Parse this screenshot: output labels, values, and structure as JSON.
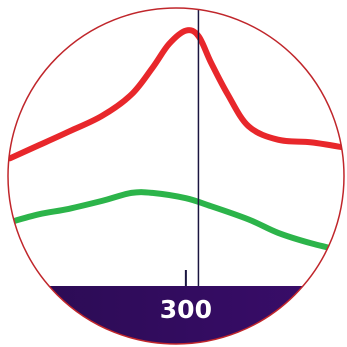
{
  "magnifier": {
    "border_color": "#c0262b",
    "background": "#ffffff",
    "axis_bar_color_start": "#2a0b52",
    "axis_bar_color_end": "#3a0d6b"
  },
  "chart_data": {
    "type": "line",
    "title": "",
    "xlabel": "",
    "ylabel": "",
    "xlim": [
      258,
      338
    ],
    "ylim": [
      0,
      100
    ],
    "grid": false,
    "x_ticks": [
      300
    ],
    "x_tick_labels": [
      "300"
    ],
    "cursor_x": 303,
    "series": [
      {
        "color": "#e8272b",
        "x": [
          258,
          265,
          272,
          280,
          287,
          292,
          296,
          300,
          303,
          306,
          310,
          315,
          322,
          330,
          338
        ],
        "y": [
          48,
          53,
          58,
          64,
          72,
          82,
          91,
          96,
          94,
          84,
          72,
          60,
          55,
          54,
          52
        ]
      },
      {
        "color": "#2cb44a",
        "x": [
          258,
          265,
          272,
          280,
          287,
          292,
          300,
          306,
          315,
          322,
          330,
          338
        ],
        "y": [
          24,
          27,
          29,
          32,
          35,
          35,
          33,
          30,
          25,
          20,
          16,
          13
        ]
      }
    ]
  }
}
